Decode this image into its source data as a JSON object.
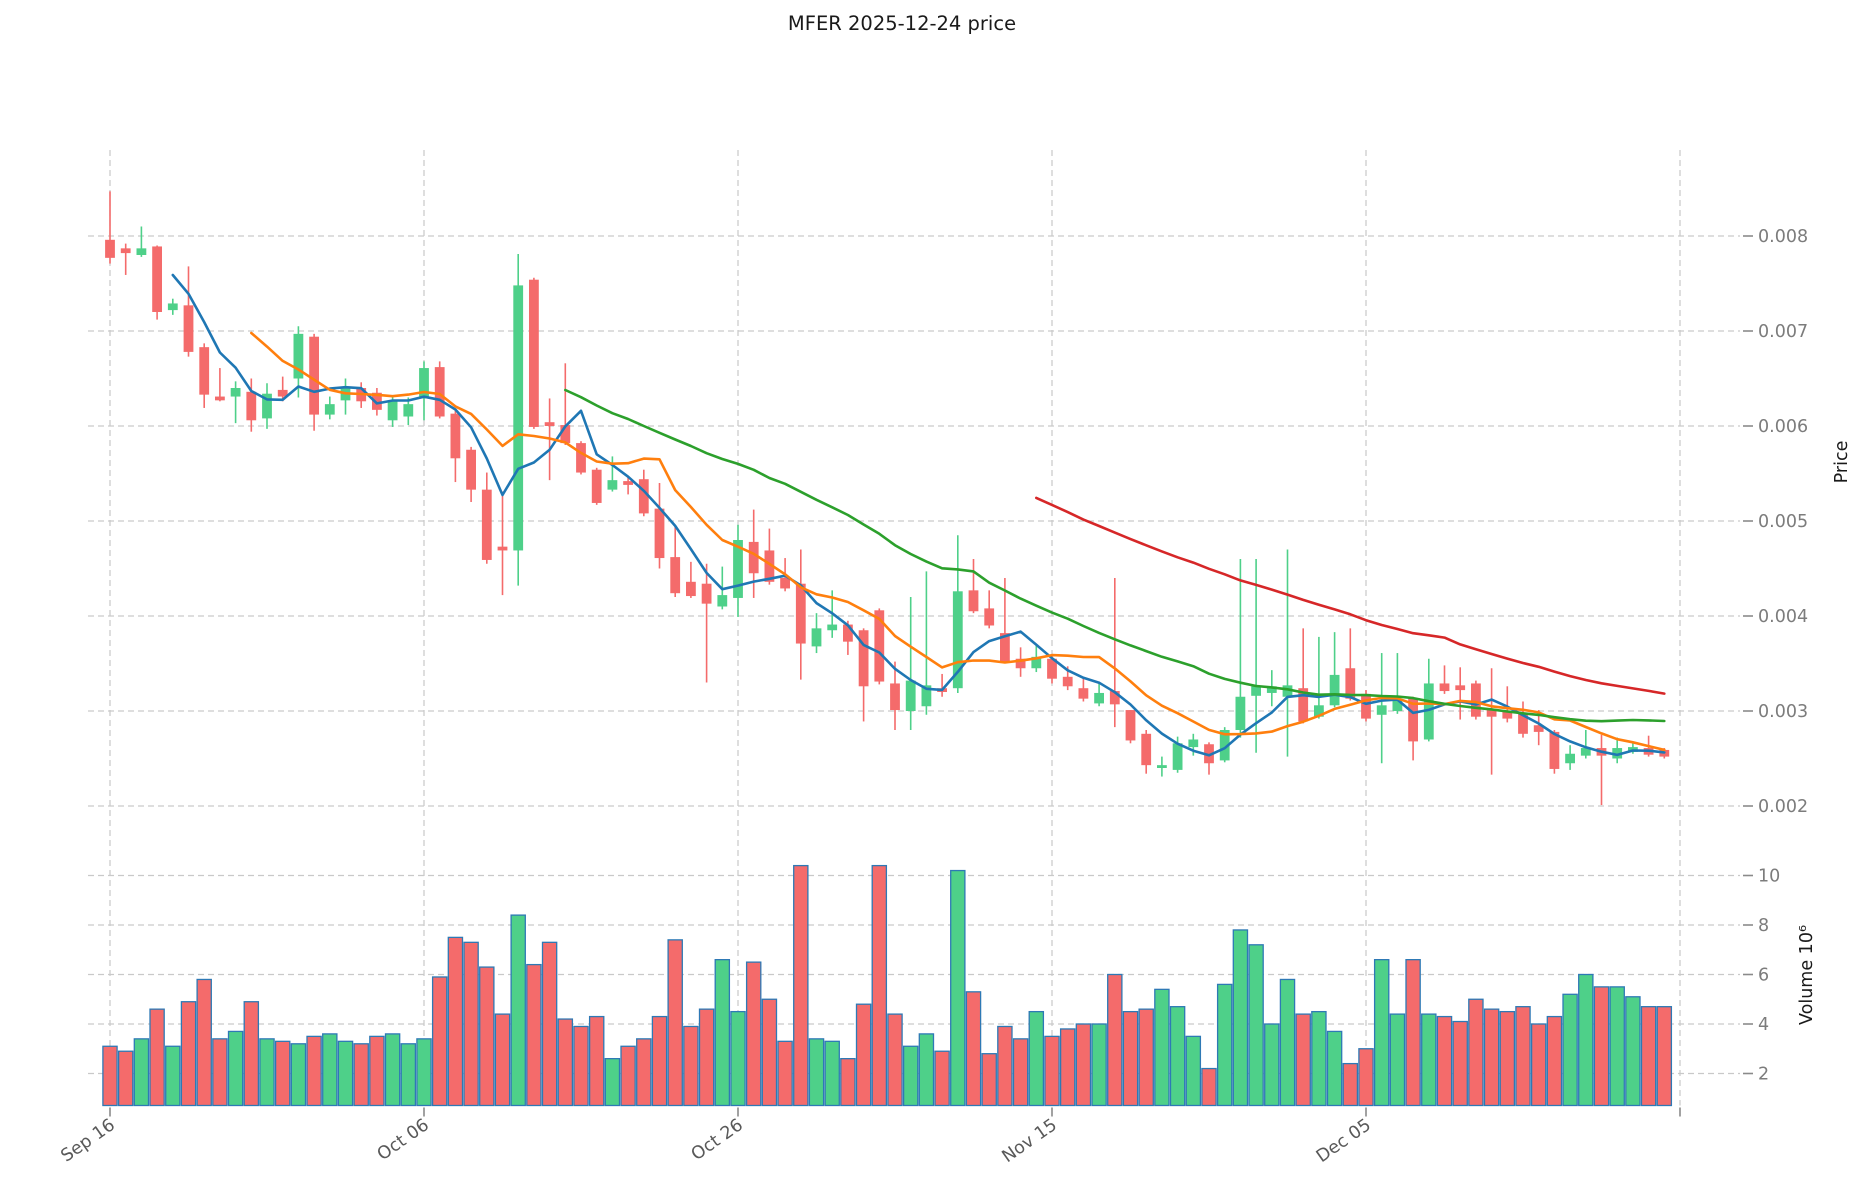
{
  "title": "MFER  2025-12-24  price",
  "price_axis": {
    "label": "Price",
    "tick_labels": [
      "0.008",
      "0.007",
      "0.006",
      "0.005",
      "0.004",
      "0.003",
      "0.002"
    ],
    "tick_values": [
      0.008,
      0.007,
      0.006,
      0.005,
      0.004,
      0.003,
      0.002
    ]
  },
  "volume_axis": {
    "label_full": "Volume  10⁶",
    "tick_labels": [
      "10",
      "8",
      "6",
      "4",
      "2"
    ],
    "tick_values": [
      10,
      8,
      6,
      4,
      2
    ]
  },
  "x_axis": {
    "tick_labels": [
      "Sep 16",
      "Oct 06",
      "Oct 26",
      "Nov 15",
      "Dec 05"
    ],
    "tick_day_indices": [
      0,
      20,
      40,
      60,
      80
    ],
    "unlabeled_gridline_day": 100,
    "start_date": "2025-09-16",
    "end_date": "2025-12-24"
  },
  "colors": {
    "up": "#4ed089",
    "down": "#f46b6b",
    "volume_edge": "#2e79b5",
    "grid": "#c9c9c9",
    "ma5": "#1f77b4",
    "ma10": "#ff7f0e",
    "ma30": "#2ca02c",
    "ma60": "#d62728",
    "background": "#ffffff"
  },
  "moving_averages": [
    {
      "name": "MA5",
      "window": 5,
      "color_key": "ma5"
    },
    {
      "name": "MA10",
      "window": 10,
      "color_key": "ma10"
    },
    {
      "name": "MA30",
      "window": 30,
      "color_key": "ma30"
    },
    {
      "name": "MA60",
      "window": 60,
      "color_key": "ma60"
    }
  ],
  "chart_data": {
    "type": "candlestick",
    "title": "MFER  2025-12-24  price",
    "ylabel": "Price",
    "ylabel_volume": "Volume  10⁶",
    "price_ylim": [
      0.00145,
      0.00891
    ],
    "volume_ylim_millions": [
      0.65,
      10.7
    ],
    "grid": "dashed",
    "num_days": 100,
    "open": [
      0.00796,
      0.00787,
      0.0078,
      0.00789,
      0.00722,
      0.00727,
      0.00683,
      0.00631,
      0.00631,
      0.00636,
      0.00608,
      0.00638,
      0.0065,
      0.00694,
      0.00612,
      0.00627,
      0.0064,
      0.00635,
      0.00606,
      0.0061,
      0.00629,
      0.00662,
      0.00613,
      0.00575,
      0.00533,
      0.00473,
      0.00469,
      0.00754,
      0.00604,
      0.00601,
      0.00582,
      0.00554,
      0.00533,
      0.00542,
      0.00544,
      0.00513,
      0.00462,
      0.00436,
      0.00434,
      0.0041,
      0.00419,
      0.00478,
      0.00469,
      0.0044,
      0.00434,
      0.00368,
      0.00385,
      0.00391,
      0.00385,
      0.00406,
      0.00329,
      0.003,
      0.00305,
      0.00324,
      0.00324,
      0.00427,
      0.00408,
      0.00382,
      0.00355,
      0.00345,
      0.00355,
      0.00336,
      0.00324,
      0.00308,
      0.00321,
      0.00301,
      0.00276,
      0.0024,
      0.00238,
      0.00262,
      0.00265,
      0.00248,
      0.0028,
      0.00316,
      0.00319,
      0.00315,
      0.00324,
      0.00294,
      0.00306,
      0.00345,
      0.00318,
      0.00296,
      0.003,
      0.00313,
      0.0027,
      0.00329,
      0.00327,
      0.00329,
      0.00302,
      0.00299,
      0.00298,
      0.00285,
      0.00278,
      0.00245,
      0.00253,
      0.00261,
      0.0025,
      0.00257,
      0.00261,
      0.00259
    ],
    "high": [
      0.00847,
      0.00792,
      0.0081,
      0.0079,
      0.00734,
      0.00768,
      0.00687,
      0.00661,
      0.00647,
      0.0065,
      0.00645,
      0.00652,
      0.00705,
      0.00697,
      0.00631,
      0.0065,
      0.00646,
      0.0064,
      0.00631,
      0.0063,
      0.00668,
      0.00668,
      0.00617,
      0.00578,
      0.00551,
      0.00531,
      0.00781,
      0.00756,
      0.00629,
      0.00666,
      0.00584,
      0.00556,
      0.00568,
      0.00547,
      0.00554,
      0.0054,
      0.00494,
      0.00457,
      0.00455,
      0.00452,
      0.00496,
      0.00512,
      0.00492,
      0.00461,
      0.0047,
      0.00403,
      0.00427,
      0.00395,
      0.00387,
      0.00408,
      0.00352,
      0.0042,
      0.00447,
      0.00339,
      0.00485,
      0.0046,
      0.00427,
      0.0044,
      0.00367,
      0.00369,
      0.00358,
      0.00347,
      0.00335,
      0.00331,
      0.0044,
      0.00301,
      0.0028,
      0.00252,
      0.00273,
      0.00276,
      0.00267,
      0.00283,
      0.0046,
      0.0046,
      0.00343,
      0.0047,
      0.00387,
      0.00378,
      0.00383,
      0.00387,
      0.00322,
      0.00361,
      0.00361,
      0.00315,
      0.00355,
      0.00348,
      0.00346,
      0.00332,
      0.00345,
      0.00326,
      0.0031,
      0.00301,
      0.0028,
      0.00264,
      0.0028,
      0.00275,
      0.00272,
      0.00267,
      0.00274,
      0.00261
    ],
    "low": [
      0.00771,
      0.00759,
      0.00778,
      0.00712,
      0.00717,
      0.00673,
      0.00619,
      0.00626,
      0.00603,
      0.00594,
      0.00597,
      0.00626,
      0.0063,
      0.00595,
      0.00607,
      0.00612,
      0.00619,
      0.00611,
      0.00599,
      0.00601,
      0.00606,
      0.00608,
      0.00541,
      0.0052,
      0.00455,
      0.00422,
      0.00432,
      0.00597,
      0.00543,
      0.0058,
      0.00549,
      0.00517,
      0.00531,
      0.00528,
      0.00505,
      0.0045,
      0.0042,
      0.00419,
      0.0033,
      0.00407,
      0.00399,
      0.00419,
      0.00433,
      0.00426,
      0.00333,
      0.00361,
      0.00377,
      0.00359,
      0.00289,
      0.00328,
      0.0028,
      0.0028,
      0.00296,
      0.00315,
      0.00319,
      0.00403,
      0.00387,
      0.0035,
      0.00336,
      0.00341,
      0.00329,
      0.00322,
      0.0031,
      0.00305,
      0.00283,
      0.00266,
      0.00234,
      0.00231,
      0.00235,
      0.00253,
      0.00233,
      0.00246,
      0.00272,
      0.00256,
      0.00305,
      0.00252,
      0.00287,
      0.00292,
      0.00304,
      0.00311,
      0.00289,
      0.00245,
      0.00297,
      0.00248,
      0.00268,
      0.00318,
      0.00291,
      0.00291,
      0.00233,
      0.00288,
      0.00272,
      0.00264,
      0.00234,
      0.00238,
      0.0025,
      0.00201,
      0.00245,
      0.00255,
      0.00252,
      0.0025
    ],
    "close": [
      0.00777,
      0.00782,
      0.00787,
      0.0072,
      0.00729,
      0.00678,
      0.00633,
      0.00627,
      0.0064,
      0.00606,
      0.00634,
      0.00631,
      0.00697,
      0.00612,
      0.00623,
      0.00641,
      0.00626,
      0.00617,
      0.00627,
      0.00623,
      0.00661,
      0.0061,
      0.00566,
      0.00533,
      0.00459,
      0.00469,
      0.00748,
      0.00599,
      0.006,
      0.00582,
      0.00551,
      0.00519,
      0.00543,
      0.00538,
      0.00508,
      0.00461,
      0.00424,
      0.00421,
      0.00413,
      0.00422,
      0.0048,
      0.00445,
      0.00436,
      0.00429,
      0.00371,
      0.00387,
      0.00391,
      0.00373,
      0.00326,
      0.00331,
      0.00301,
      0.00332,
      0.00327,
      0.0032,
      0.00426,
      0.00405,
      0.0039,
      0.00352,
      0.00345,
      0.00357,
      0.00334,
      0.00326,
      0.00313,
      0.00319,
      0.00307,
      0.00269,
      0.00243,
      0.00243,
      0.00266,
      0.0027,
      0.00245,
      0.0028,
      0.00315,
      0.00326,
      0.00326,
      0.00327,
      0.00289,
      0.00306,
      0.00338,
      0.00313,
      0.00292,
      0.00306,
      0.00311,
      0.00268,
      0.00329,
      0.00321,
      0.00322,
      0.00294,
      0.00294,
      0.00292,
      0.00276,
      0.00278,
      0.00239,
      0.00255,
      0.00261,
      0.00253,
      0.00261,
      0.00262,
      0.00254,
      0.00252
    ],
    "volume_millions": [
      3.1,
      2.9,
      3.4,
      4.6,
      3.1,
      4.9,
      5.8,
      3.4,
      3.7,
      4.9,
      3.4,
      3.3,
      3.2,
      3.5,
      3.6,
      3.3,
      3.2,
      3.5,
      3.6,
      3.2,
      3.4,
      5.9,
      7.5,
      7.3,
      6.3,
      4.4,
      8.4,
      6.4,
      7.3,
      4.2,
      3.9,
      4.3,
      2.6,
      3.1,
      3.4,
      4.3,
      7.4,
      3.9,
      4.6,
      6.6,
      4.5,
      6.5,
      5.0,
      3.3,
      10.4,
      3.4,
      3.3,
      2.6,
      4.8,
      10.4,
      4.4,
      3.1,
      3.6,
      2.9,
      10.2,
      5.3,
      2.8,
      3.9,
      3.4,
      4.5,
      3.5,
      3.8,
      4.0,
      4.0,
      6.0,
      4.5,
      4.6,
      5.4,
      4.7,
      3.5,
      2.2,
      5.6,
      7.8,
      7.2,
      4.0,
      5.8,
      4.4,
      4.5,
      3.7,
      2.4,
      3.0,
      6.6,
      4.4,
      6.6,
      4.4,
      4.3,
      4.1,
      5.0,
      4.6,
      4.5,
      4.7,
      4.0,
      4.3,
      5.2,
      6.0,
      5.5,
      5.5,
      5.1,
      4.7,
      4.7
    ]
  }
}
